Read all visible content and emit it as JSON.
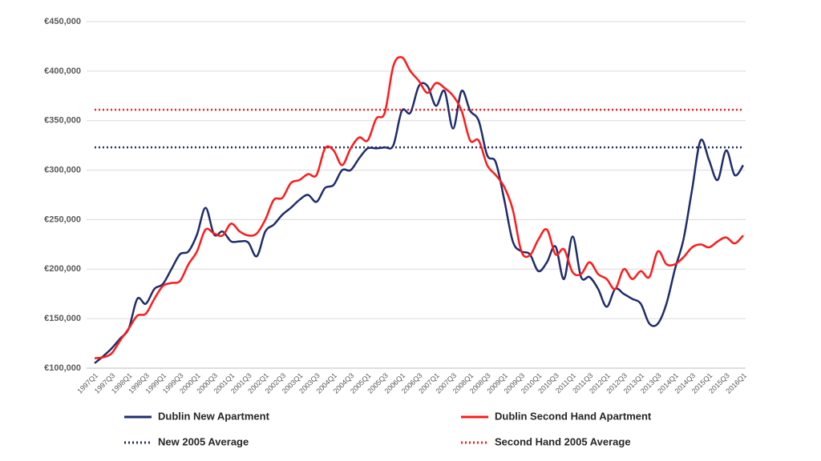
{
  "chart_data": {
    "type": "line",
    "categories": [
      "1997Q1",
      null,
      "1997Q3",
      null,
      "1998Q1",
      null,
      "1998Q3",
      null,
      "1999Q1",
      null,
      "1999Q3",
      null,
      "2000Q1",
      null,
      "2000Q3",
      null,
      "2001Q1",
      null,
      "2001Q3",
      null,
      "2002Q1",
      null,
      "2002Q3",
      null,
      "2003Q1",
      null,
      "2003Q3",
      null,
      "2004Q1",
      null,
      "2004Q3",
      null,
      "2005Q1",
      null,
      "2005Q3",
      null,
      "2006Q1",
      null,
      "2006Q3",
      null,
      "2007Q1",
      null,
      "2007Q3",
      null,
      "2008Q1",
      null,
      "2008Q3",
      null,
      "2009Q1",
      null,
      "2009Q3",
      null,
      "2010Q1",
      null,
      "2010Q3",
      null,
      "2011Q1",
      null,
      "2011Q3",
      null,
      "2012Q1",
      null,
      "2012Q3",
      null,
      "2013Q1",
      null,
      "2013Q3",
      null,
      "2014Q1",
      null,
      "2014Q3",
      null,
      "2015Q1",
      null,
      "2015Q3",
      null,
      "2016Q1"
    ],
    "series": [
      {
        "name": "Dublin New Apartment",
        "color": "#1f2d6b",
        "values": [
          105000,
          112000,
          120000,
          130000,
          140000,
          170000,
          165000,
          180000,
          185000,
          200000,
          215000,
          218000,
          235000,
          262000,
          235000,
          238000,
          228000,
          228000,
          227000,
          213000,
          238000,
          245000,
          255000,
          262000,
          270000,
          275000,
          268000,
          282000,
          285000,
          300000,
          300000,
          312000,
          322000,
          322000,
          323000,
          325000,
          360000,
          358000,
          385000,
          385000,
          365000,
          380000,
          342000,
          380000,
          360000,
          350000,
          315000,
          308000,
          270000,
          228000,
          218000,
          215000,
          198000,
          207000,
          223000,
          190000,
          233000,
          192000,
          192000,
          180000,
          162000,
          180000,
          175000,
          170000,
          165000,
          145000,
          145000,
          165000,
          200000,
          230000,
          280000,
          330000,
          310000,
          290000,
          320000,
          295000,
          305000
        ]
      },
      {
        "name": "Dublin Second Hand Apartment",
        "color": "#ff1a1a",
        "values": [
          110000,
          111000,
          115000,
          128000,
          140000,
          153000,
          155000,
          170000,
          183000,
          186000,
          188000,
          205000,
          218000,
          240000,
          236000,
          234000,
          246000,
          238000,
          234000,
          236000,
          250000,
          270000,
          272000,
          287000,
          290000,
          296000,
          295000,
          322000,
          320000,
          305000,
          322000,
          333000,
          330000,
          352000,
          358000,
          405000,
          414000,
          400000,
          390000,
          378000,
          388000,
          383000,
          375000,
          360000,
          330000,
          330000,
          305000,
          295000,
          283000,
          260000,
          218000,
          214000,
          230000,
          240000,
          215000,
          220000,
          197000,
          195000,
          207000,
          195000,
          190000,
          180000,
          200000,
          190000,
          198000,
          192000,
          218000,
          205000,
          205000,
          212000,
          222000,
          225000,
          222000,
          228000,
          232000,
          226000,
          234000
        ]
      }
    ],
    "reference_lines": [
      {
        "name": "New 2005 Average",
        "color": "#1f2d6b",
        "value": 323000,
        "style": "dotted"
      },
      {
        "name": "Second Hand 2005 Average",
        "color": "#ff1a1a",
        "value": 361000,
        "style": "dotted"
      }
    ],
    "ylim": [
      100000,
      450000
    ],
    "yticks": [
      {
        "value": 100000,
        "label": "€100,000"
      },
      {
        "value": 150000,
        "label": "€150,000"
      },
      {
        "value": 200000,
        "label": "€200,000"
      },
      {
        "value": 250000,
        "label": "€250,000"
      },
      {
        "value": 300000,
        "label": "€300,000"
      },
      {
        "value": 350000,
        "label": "€350,000"
      },
      {
        "value": 400000,
        "label": "€400,000"
      },
      {
        "value": 450000,
        "label": "€450,000"
      }
    ],
    "grid": true
  }
}
